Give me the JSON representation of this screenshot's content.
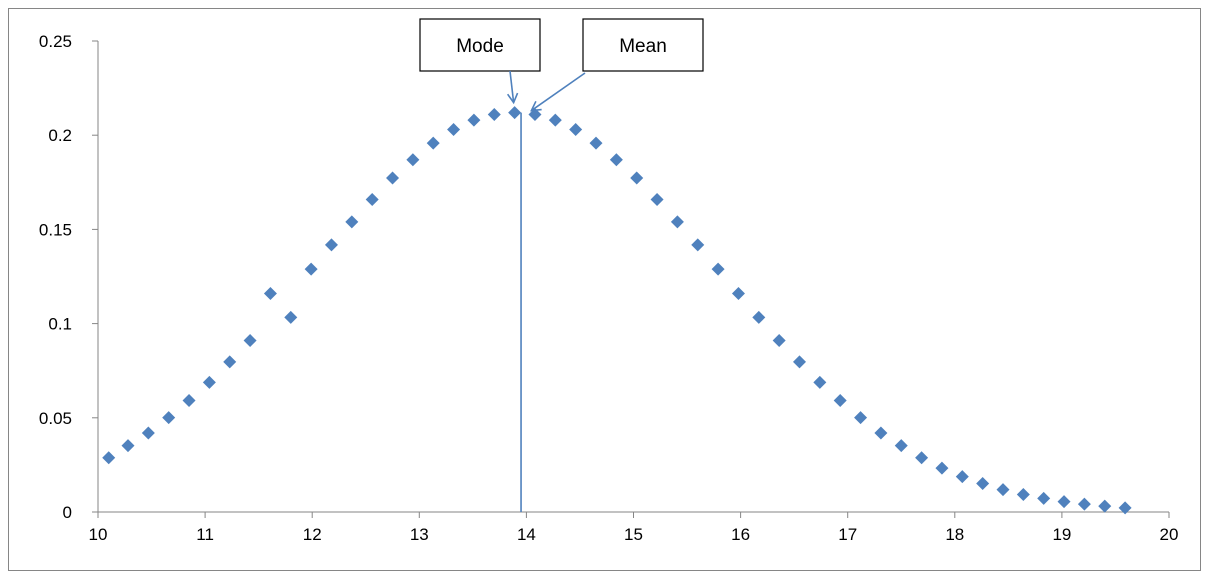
{
  "chart_data": {
    "type": "scatter",
    "title": "",
    "xlabel": "",
    "ylabel": "",
    "xlim": [
      10,
      20
    ],
    "ylim": [
      0,
      0.25
    ],
    "x_ticks": [
      "10",
      "11",
      "12",
      "13",
      "14",
      "15",
      "16",
      "17",
      "18",
      "19",
      "20"
    ],
    "y_ticks": [
      "0",
      "0.05",
      "0.1",
      "0.15",
      "0.2",
      "0.25"
    ],
    "grid": false,
    "legend": "none",
    "marker": "diamond",
    "series_color": "#4F81BD",
    "points": [
      [
        10.1,
        0.0288
      ],
      [
        10.28,
        0.0352
      ],
      [
        10.47,
        0.0419
      ],
      [
        10.66,
        0.0501
      ],
      [
        10.85,
        0.0592
      ],
      [
        11.04,
        0.0688
      ],
      [
        11.23,
        0.0797
      ],
      [
        11.42,
        0.091
      ],
      [
        11.61,
        0.116
      ],
      [
        11.8,
        0.1033
      ],
      [
        11.99,
        0.1289
      ],
      [
        12.18,
        0.1418
      ],
      [
        12.37,
        0.154
      ],
      [
        12.56,
        0.1659
      ],
      [
        12.75,
        0.1773
      ],
      [
        12.94,
        0.187
      ],
      [
        13.13,
        0.1958
      ],
      [
        13.32,
        0.203
      ],
      [
        13.51,
        0.208
      ],
      [
        13.7,
        0.211
      ],
      [
        13.89,
        0.212
      ],
      [
        14.08,
        0.211
      ],
      [
        14.27,
        0.208
      ],
      [
        14.46,
        0.203
      ],
      [
        14.65,
        0.1958
      ],
      [
        14.84,
        0.187
      ],
      [
        15.03,
        0.1773
      ],
      [
        15.22,
        0.1659
      ],
      [
        15.41,
        0.154
      ],
      [
        15.6,
        0.1418
      ],
      [
        15.79,
        0.1289
      ],
      [
        15.98,
        0.116
      ],
      [
        16.17,
        0.1033
      ],
      [
        16.36,
        0.091
      ],
      [
        16.55,
        0.0797
      ],
      [
        16.74,
        0.0688
      ],
      [
        16.93,
        0.0592
      ],
      [
        17.12,
        0.0501
      ],
      [
        17.31,
        0.0419
      ],
      [
        17.5,
        0.0352
      ],
      [
        17.69,
        0.0288
      ],
      [
        17.88,
        0.0233
      ],
      [
        18.07,
        0.0188
      ],
      [
        18.26,
        0.0151
      ],
      [
        18.45,
        0.0119
      ],
      [
        18.64,
        0.0093
      ],
      [
        18.83,
        0.0072
      ],
      [
        19.02,
        0.0055
      ],
      [
        19.21,
        0.0042
      ],
      [
        19.4,
        0.0031
      ],
      [
        19.59,
        0.0022
      ]
    ],
    "mean_line_x": 13.95,
    "annotations": [
      {
        "text": "Mode",
        "target": [
          13.89,
          0.212
        ]
      },
      {
        "text": "Mean",
        "target": [
          14.0,
          0.212
        ]
      }
    ]
  }
}
